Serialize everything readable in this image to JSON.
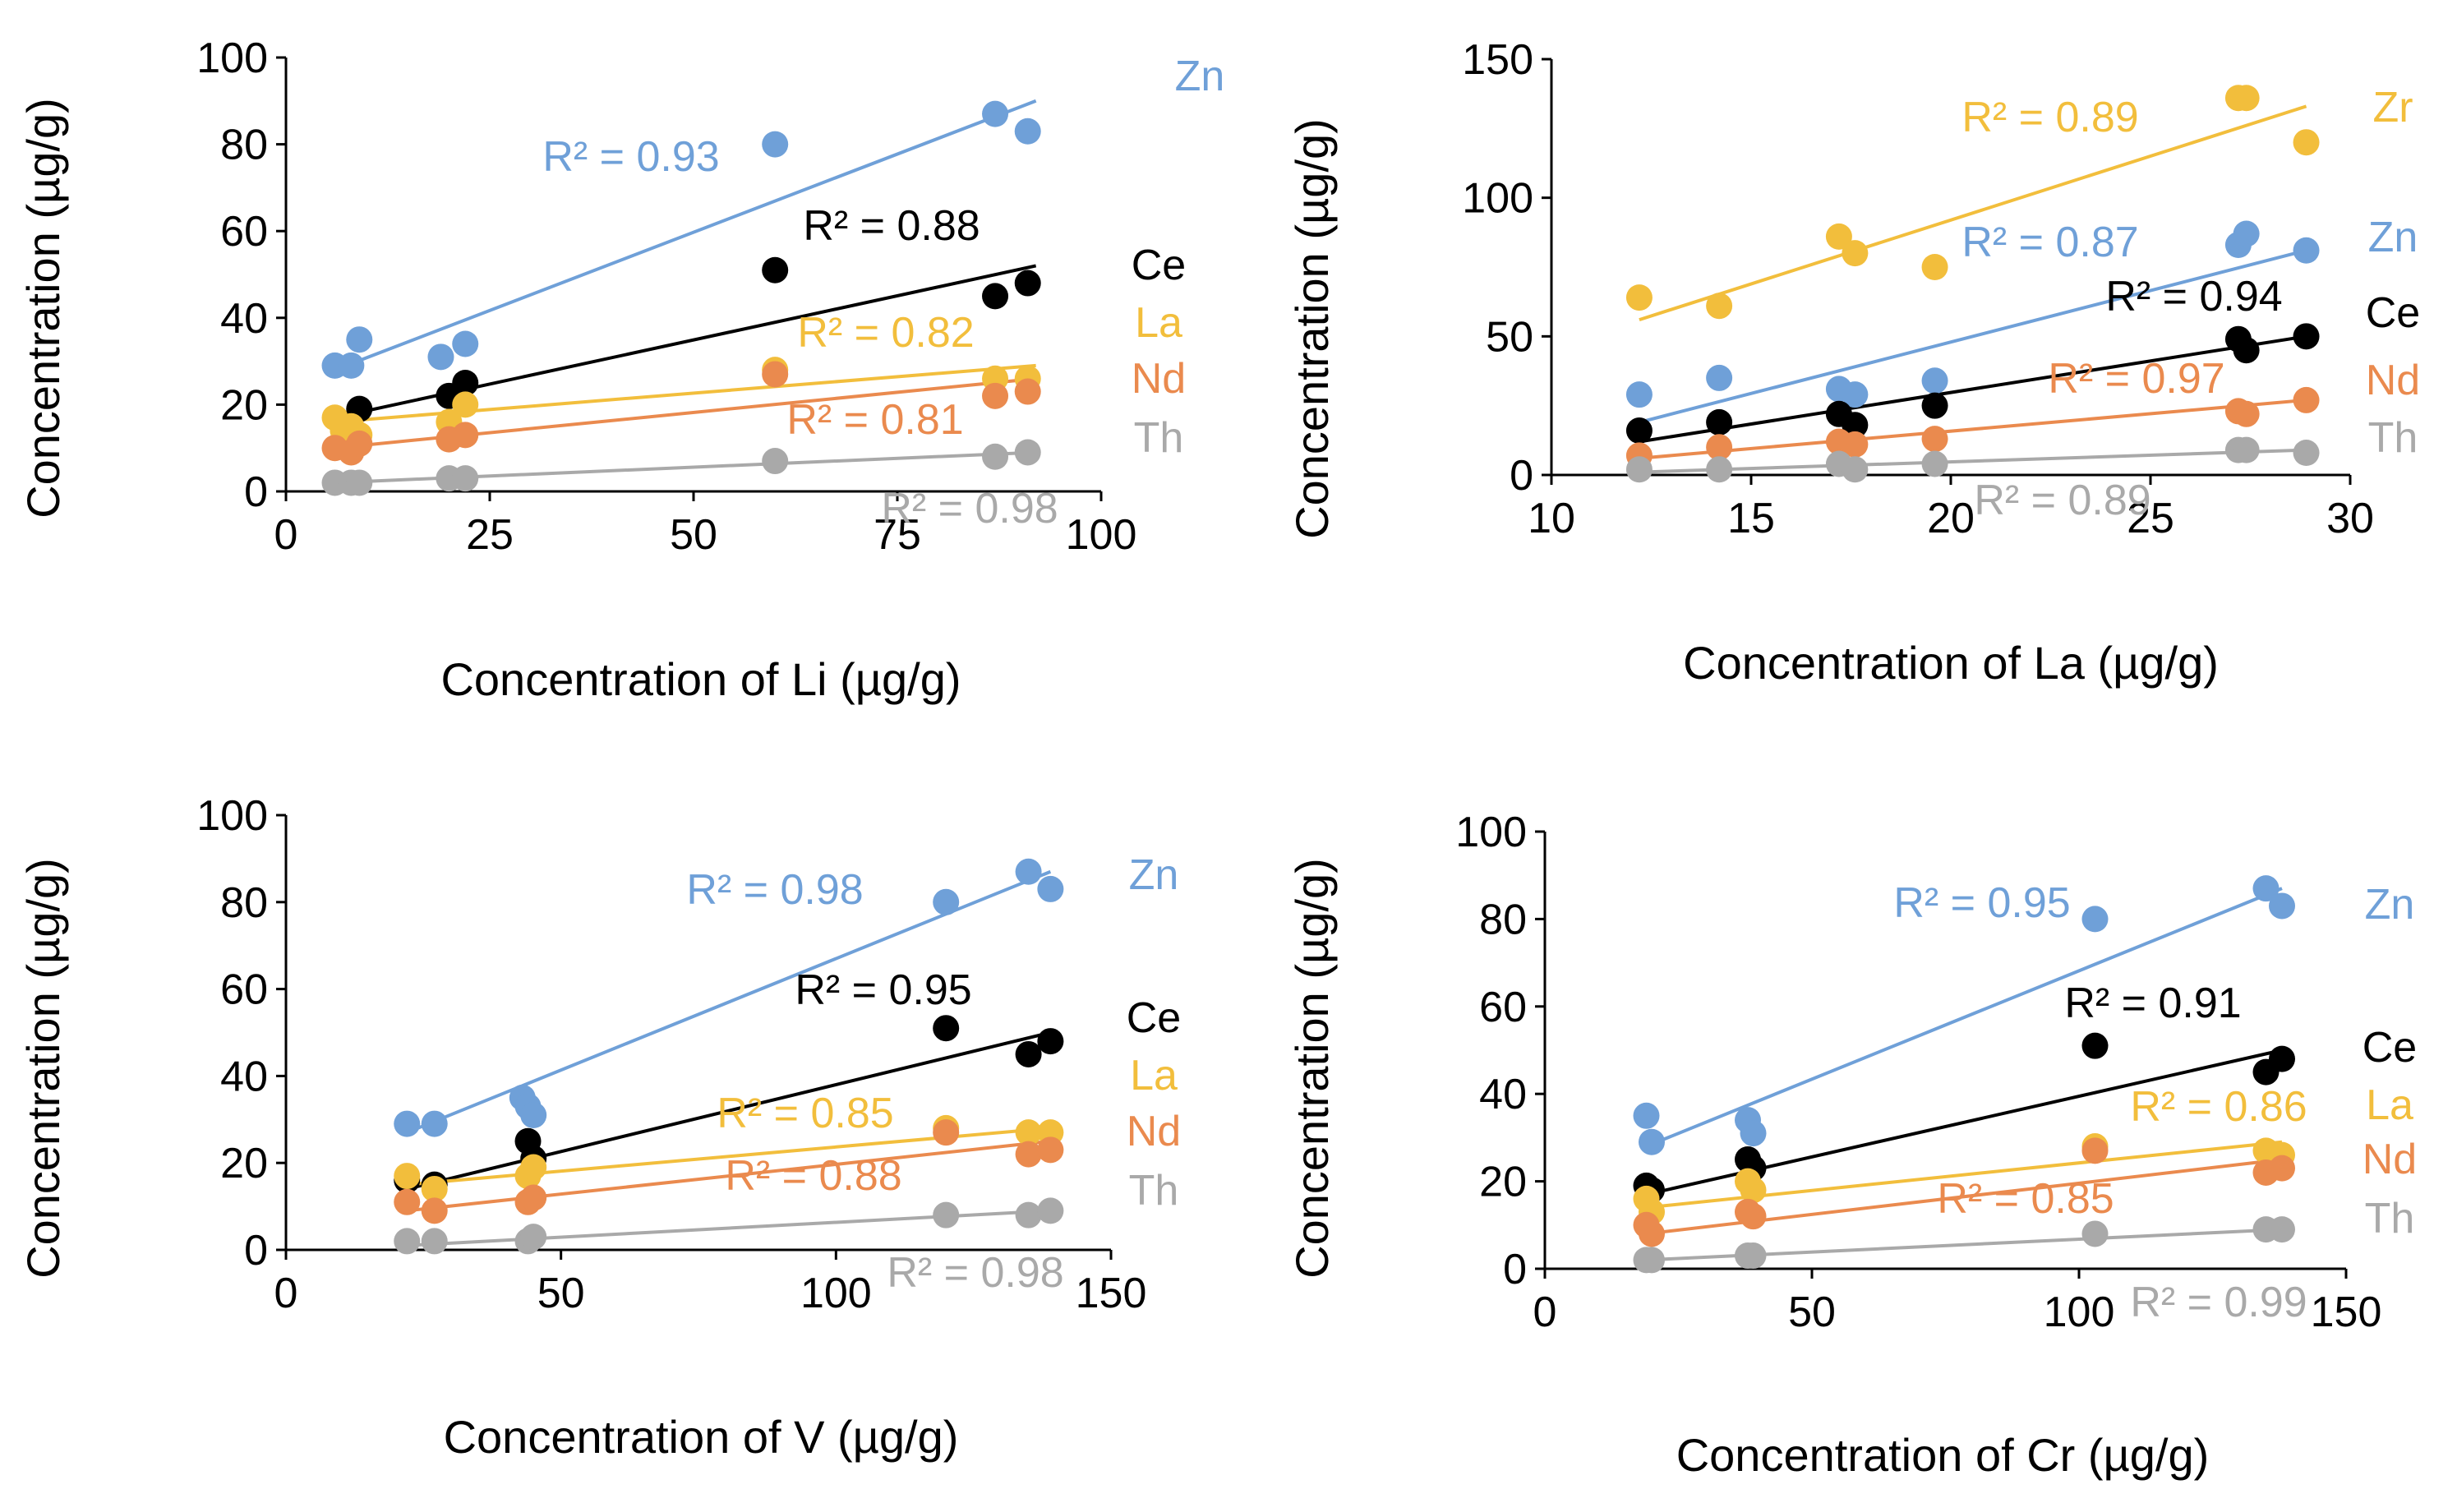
{
  "colors": {
    "Zn": "#6fa0d8",
    "Zr": "#f2be3c",
    "Ce": "#000000",
    "La": "#f2be3c",
    "Nd": "#ea8a4e",
    "Th": "#a9a9a9",
    "axis": "#000000"
  },
  "chart_data": [
    {
      "id": "li",
      "type": "scatter",
      "xlabel": "Concentration of Li (µg/g)",
      "ylabel": "Concentration (µg/g)",
      "xlim": [
        0,
        100
      ],
      "ylim": [
        0,
        100
      ],
      "xticks": [
        "0",
        "25",
        "50",
        "75",
        "100"
      ],
      "yticks": [
        "0",
        "20",
        "40",
        "60",
        "80",
        "100"
      ],
      "series": [
        {
          "name": "Zn",
          "color_key": "Zn",
          "r2": "R² = 0.93",
          "points": [
            [
              6,
              29
            ],
            [
              8,
              29
            ],
            [
              9,
              35
            ],
            [
              19,
              31
            ],
            [
              22,
              34
            ],
            [
              60,
              80
            ],
            [
              87,
              87
            ],
            [
              91,
              83
            ]
          ],
          "trend": [
            [
              6,
              28
            ],
            [
              92,
              90
            ]
          ]
        },
        {
          "name": "Ce",
          "color_key": "Ce",
          "r2": "R² = 0.88",
          "points": [
            [
              9,
              19
            ],
            [
              20,
              22
            ],
            [
              22,
              25
            ],
            [
              60,
              51
            ],
            [
              87,
              45
            ],
            [
              91,
              48
            ]
          ],
          "trend": [
            [
              6,
              17
            ],
            [
              92,
              52
            ]
          ]
        },
        {
          "name": "La",
          "color_key": "La",
          "r2": "R² = 0.82",
          "points": [
            [
              6,
              17
            ],
            [
              7,
              14
            ],
            [
              8,
              15
            ],
            [
              9,
              13
            ],
            [
              20,
              16
            ],
            [
              22,
              20
            ],
            [
              60,
              28
            ],
            [
              87,
              26
            ],
            [
              91,
              26
            ]
          ],
          "trend": [
            [
              6,
              16
            ],
            [
              92,
              29
            ]
          ]
        },
        {
          "name": "Nd",
          "color_key": "Nd",
          "r2": "R² = 0.81",
          "points": [
            [
              6,
              10
            ],
            [
              8,
              9
            ],
            [
              9,
              11
            ],
            [
              20,
              12
            ],
            [
              22,
              13
            ],
            [
              60,
              27
            ],
            [
              87,
              22
            ],
            [
              91,
              23
            ]
          ],
          "trend": [
            [
              6,
              10
            ],
            [
              92,
              26
            ]
          ]
        },
        {
          "name": "Th",
          "color_key": "Th",
          "r2": "R² = 0.98",
          "points": [
            [
              6,
              2
            ],
            [
              8,
              2
            ],
            [
              9,
              2
            ],
            [
              20,
              3
            ],
            [
              22,
              3
            ],
            [
              60,
              7
            ],
            [
              87,
              8
            ],
            [
              91,
              9
            ]
          ],
          "trend": [
            [
              6,
              2
            ],
            [
              92,
              9
            ]
          ]
        }
      ]
    },
    {
      "id": "la",
      "type": "scatter",
      "xlabel": "Concentration of La (µg/g)",
      "ylabel": "Concentration (µg/g)",
      "xlim": [
        10,
        30
      ],
      "ylim": [
        0,
        150
      ],
      "xticks": [
        "10",
        "15",
        "20",
        "25",
        "30"
      ],
      "yticks": [
        "0",
        "50",
        "100",
        "150"
      ],
      "series": [
        {
          "name": "Zr",
          "color_key": "Zr",
          "r2": "R² = 0.89",
          "points": [
            [
              12.2,
              64
            ],
            [
              14.2,
              61
            ],
            [
              17.2,
              86
            ],
            [
              17.6,
              80
            ],
            [
              19.6,
              75
            ],
            [
              27.2,
              136
            ],
            [
              27.4,
              136
            ],
            [
              28.9,
              120
            ]
          ],
          "trend": [
            [
              12.2,
              56
            ],
            [
              28.9,
              133
            ]
          ]
        },
        {
          "name": "Zn",
          "color_key": "Zn",
          "r2": "R² = 0.87",
          "points": [
            [
              12.2,
              29
            ],
            [
              14.2,
              35
            ],
            [
              17.2,
              31
            ],
            [
              17.6,
              29
            ],
            [
              19.6,
              34
            ],
            [
              27.2,
              83
            ],
            [
              27.4,
              87
            ],
            [
              28.9,
              81
            ]
          ],
          "trend": [
            [
              12.2,
              19
            ],
            [
              28.9,
              81
            ]
          ]
        },
        {
          "name": "Ce",
          "color_key": "Ce",
          "r2": "R² = 0.94",
          "points": [
            [
              12.2,
              16
            ],
            [
              14.2,
              19
            ],
            [
              17.2,
              22
            ],
            [
              17.6,
              18
            ],
            [
              19.6,
              25
            ],
            [
              27.2,
              49
            ],
            [
              27.4,
              45
            ],
            [
              28.9,
              50
            ]
          ],
          "trend": [
            [
              12.2,
              12
            ],
            [
              28.9,
              50
            ]
          ]
        },
        {
          "name": "Nd",
          "color_key": "Nd",
          "r2": "R² = 0.97",
          "points": [
            [
              12.2,
              7
            ],
            [
              14.2,
              10
            ],
            [
              17.2,
              12
            ],
            [
              17.6,
              11
            ],
            [
              19.6,
              13
            ],
            [
              27.2,
              23
            ],
            [
              27.4,
              22
            ],
            [
              28.9,
              27
            ]
          ],
          "trend": [
            [
              12.2,
              6
            ],
            [
              28.9,
              27
            ]
          ]
        },
        {
          "name": "Th",
          "color_key": "Th",
          "r2": "R² = 0.89",
          "points": [
            [
              12.2,
              2
            ],
            [
              14.2,
              2
            ],
            [
              17.2,
              4
            ],
            [
              17.6,
              2
            ],
            [
              19.6,
              4
            ],
            [
              27.2,
              9
            ],
            [
              27.4,
              9
            ],
            [
              28.9,
              8
            ]
          ],
          "trend": [
            [
              12.2,
              1
            ],
            [
              28.9,
              9
            ]
          ]
        }
      ]
    },
    {
      "id": "v",
      "type": "scatter",
      "xlabel": "Concentration of V (µg/g)",
      "ylabel": "Concentration (µg/g)",
      "xlim": [
        0,
        150
      ],
      "ylim": [
        0,
        100
      ],
      "xticks": [
        "0",
        "50",
        "100",
        "150"
      ],
      "yticks": [
        "0",
        "20",
        "40",
        "60",
        "80",
        "100"
      ],
      "series": [
        {
          "name": "Zn",
          "color_key": "Zn",
          "r2": "R² = 0.98",
          "points": [
            [
              22,
              29
            ],
            [
              27,
              29
            ],
            [
              43,
              35
            ],
            [
              44,
              33
            ],
            [
              45,
              31
            ],
            [
              120,
              80
            ],
            [
              135,
              87
            ],
            [
              139,
              83
            ]
          ],
          "trend": [
            [
              22,
              27
            ],
            [
              139,
              87
            ]
          ]
        },
        {
          "name": "Ce",
          "color_key": "Ce",
          "r2": "R² = 0.95",
          "points": [
            [
              22,
              16
            ],
            [
              27,
              15
            ],
            [
              44,
              25
            ],
            [
              45,
              21
            ],
            [
              120,
              51
            ],
            [
              135,
              45
            ],
            [
              139,
              48
            ]
          ],
          "trend": [
            [
              22,
              14
            ],
            [
              139,
              50
            ]
          ]
        },
        {
          "name": "La",
          "color_key": "La",
          "r2": "R² = 0.85",
          "points": [
            [
              22,
              17
            ],
            [
              27,
              14
            ],
            [
              44,
              17
            ],
            [
              45,
              19
            ],
            [
              120,
              28
            ],
            [
              135,
              27
            ],
            [
              139,
              27
            ]
          ],
          "trend": [
            [
              22,
              15
            ],
            [
              139,
              28
            ]
          ]
        },
        {
          "name": "Nd",
          "color_key": "Nd",
          "r2": "R² = 0.88",
          "points": [
            [
              22,
              11
            ],
            [
              27,
              9
            ],
            [
              44,
              11
            ],
            [
              45,
              12
            ],
            [
              120,
              27
            ],
            [
              135,
              22
            ],
            [
              139,
              23
            ]
          ],
          "trend": [
            [
              22,
              9
            ],
            [
              139,
              25
            ]
          ]
        },
        {
          "name": "Th",
          "color_key": "Th",
          "r2": "R² = 0.98",
          "points": [
            [
              22,
              2
            ],
            [
              27,
              2
            ],
            [
              44,
              2
            ],
            [
              45,
              3
            ],
            [
              120,
              8
            ],
            [
              135,
              8
            ],
            [
              139,
              9
            ]
          ],
          "trend": [
            [
              22,
              1
            ],
            [
              139,
              9
            ]
          ]
        }
      ]
    },
    {
      "id": "cr",
      "type": "scatter",
      "xlabel": "Concentration of Cr (µg/g)",
      "ylabel": "Concentration (µg/g)",
      "xlim": [
        0,
        150
      ],
      "ylim": [
        0,
        100
      ],
      "xticks": [
        "0",
        "50",
        "100",
        "150"
      ],
      "yticks": [
        "0",
        "20",
        "40",
        "60",
        "80",
        "100"
      ],
      "series": [
        {
          "name": "Zn",
          "color_key": "Zn",
          "r2": "R² = 0.95",
          "points": [
            [
              19,
              35
            ],
            [
              20,
              29
            ],
            [
              38,
              34
            ],
            [
              39,
              31
            ],
            [
              103,
              80
            ],
            [
              135,
              87
            ],
            [
              138,
              83
            ]
          ],
          "trend": [
            [
              19,
              28
            ],
            [
              138,
              87
            ]
          ]
        },
        {
          "name": "Ce",
          "color_key": "Ce",
          "r2": "R² = 0.91",
          "points": [
            [
              19,
              19
            ],
            [
              20,
              18
            ],
            [
              38,
              25
            ],
            [
              39,
              23
            ],
            [
              103,
              51
            ],
            [
              135,
              45
            ],
            [
              138,
              48
            ]
          ],
          "trend": [
            [
              19,
              17
            ],
            [
              138,
              50
            ]
          ]
        },
        {
          "name": "La",
          "color_key": "La",
          "r2": "R² = 0.86",
          "points": [
            [
              19,
              16
            ],
            [
              20,
              13
            ],
            [
              38,
              20
            ],
            [
              39,
              18
            ],
            [
              103,
              28
            ],
            [
              135,
              27
            ],
            [
              138,
              26
            ]
          ],
          "trend": [
            [
              19,
              14
            ],
            [
              138,
              29
            ]
          ]
        },
        {
          "name": "Nd",
          "color_key": "Nd",
          "r2": "R² = 0.85",
          "points": [
            [
              19,
              10
            ],
            [
              20,
              8
            ],
            [
              38,
              13
            ],
            [
              39,
              12
            ],
            [
              103,
              27
            ],
            [
              135,
              22
            ],
            [
              138,
              23
            ]
          ],
          "trend": [
            [
              19,
              8
            ],
            [
              138,
              25
            ]
          ]
        },
        {
          "name": "Th",
          "color_key": "Th",
          "r2": "R² = 0.99",
          "points": [
            [
              19,
              2
            ],
            [
              20,
              2
            ],
            [
              38,
              3
            ],
            [
              39,
              3
            ],
            [
              103,
              8
            ],
            [
              135,
              9
            ],
            [
              138,
              9
            ]
          ],
          "trend": [
            [
              19,
              2
            ],
            [
              138,
              9
            ]
          ]
        }
      ]
    }
  ]
}
